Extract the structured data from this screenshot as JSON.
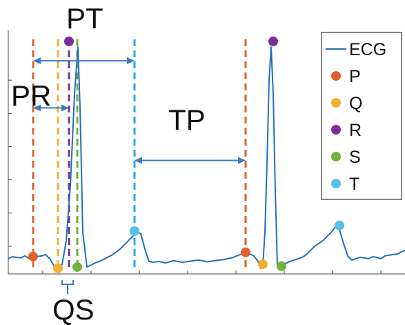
{
  "chart_data": {
    "type": "line",
    "title": "",
    "xlabel": "",
    "ylabel": "",
    "grid": false,
    "legend_placement": "top-right",
    "series": [
      {
        "name": "ECG",
        "color": "#1f6fbf",
        "x": [
          0,
          6,
          12,
          18,
          24,
          30,
          36,
          42,
          48,
          54,
          60,
          66,
          72,
          78,
          84,
          90,
          96,
          101,
          104,
          108,
          114,
          120,
          126,
          132,
          138,
          144,
          150,
          156,
          162,
          168,
          174,
          180,
          186,
          192,
          198,
          204,
          210,
          218,
          228,
          240,
          252,
          264,
          276,
          288,
          300,
          312,
          324,
          336,
          344,
          350,
          356,
          362,
          366,
          369,
          372,
          375,
          378,
          381,
          384,
          387,
          390,
          396,
          402,
          408,
          414,
          420,
          426,
          432,
          438,
          444,
          450,
          456,
          462,
          468,
          474,
          480,
          486,
          492,
          498,
          504,
          510,
          516,
          522,
          528,
          534,
          540,
          546,
          552,
          558,
          564,
          570,
          575
        ],
        "values": [
          0.55,
          0.62,
          0.6,
          0.58,
          0.65,
          0.56,
          0.6,
          0.63,
          0.65,
          0.7,
          0.55,
          0.3,
          0.2,
          0.35,
          1.2,
          3.2,
          6.5,
          8.2,
          6.0,
          1.5,
          0.25,
          0.32,
          0.4,
          0.45,
          0.52,
          0.6,
          0.68,
          0.78,
          0.9,
          1.05,
          1.2,
          1.35,
          1.55,
          1.45,
          0.9,
          0.45,
          0.42,
          0.45,
          0.4,
          0.48,
          0.42,
          0.46,
          0.5,
          0.44,
          0.48,
          0.52,
          0.58,
          0.7,
          0.78,
          0.72,
          0.65,
          0.45,
          0.2,
          0.35,
          1.5,
          4.0,
          7.0,
          8.2,
          6.5,
          3.0,
          0.3,
          0.28,
          0.38,
          0.45,
          0.5,
          0.55,
          0.6,
          0.7,
          0.85,
          1.0,
          1.1,
          1.2,
          1.35,
          1.5,
          1.7,
          1.6,
          1.1,
          0.65,
          0.5,
          0.55,
          0.6,
          0.58,
          0.55,
          0.62,
          0.6,
          0.55,
          0.65,
          0.68,
          0.7,
          0.72,
          0.8,
          0.85
        ]
      }
    ],
    "markers": [
      {
        "label": "P",
        "color": "#e0622a",
        "points": [
          [
            36,
            0.63
          ],
          [
            344,
            0.78
          ]
        ]
      },
      {
        "label": "Q",
        "color": "#f0b030",
        "points": [
          [
            72,
            0.2
          ],
          [
            369,
            0.35
          ]
        ]
      },
      {
        "label": "R",
        "color": "#7a2e98",
        "points": [
          [
            88,
            8.4
          ],
          [
            384,
            8.4
          ]
        ]
      },
      {
        "label": "S",
        "color": "#6fb23a",
        "points": [
          [
            100,
            0.25
          ],
          [
            396,
            0.28
          ]
        ]
      },
      {
        "label": "T",
        "color": "#5bc0e8",
        "points": [
          [
            183,
            1.55
          ],
          [
            480,
            1.75
          ]
        ]
      }
    ],
    "vlines": [
      {
        "x": 36,
        "color": "#e0622a"
      },
      {
        "x": 72,
        "color": "#f0b030"
      },
      {
        "x": 88,
        "color": "#7a2e98"
      },
      {
        "x": 100,
        "color": "#6fb23a"
      },
      {
        "x": 183,
        "color": "#29a9e6"
      },
      {
        "x": 344,
        "color": "#e0622a"
      }
    ],
    "intervals": [
      {
        "label": "PT",
        "from": 36,
        "to": 183,
        "y": 7.7
      },
      {
        "label": "PR",
        "from": 36,
        "to": 88,
        "y": 6.0
      },
      {
        "label": "TP",
        "from": 183,
        "to": 344,
        "y": 4.1
      }
    ],
    "qs_bracket": {
      "label": "QS",
      "from": 72,
      "to": 100
    },
    "xlim": [
      0,
      575
    ],
    "ylim": [
      0,
      8.8
    ],
    "legend": [
      "ECG",
      "P",
      "Q",
      "R",
      "S",
      "T"
    ],
    "annotations": [
      "PT",
      "PR",
      "TP",
      "QS"
    ]
  }
}
